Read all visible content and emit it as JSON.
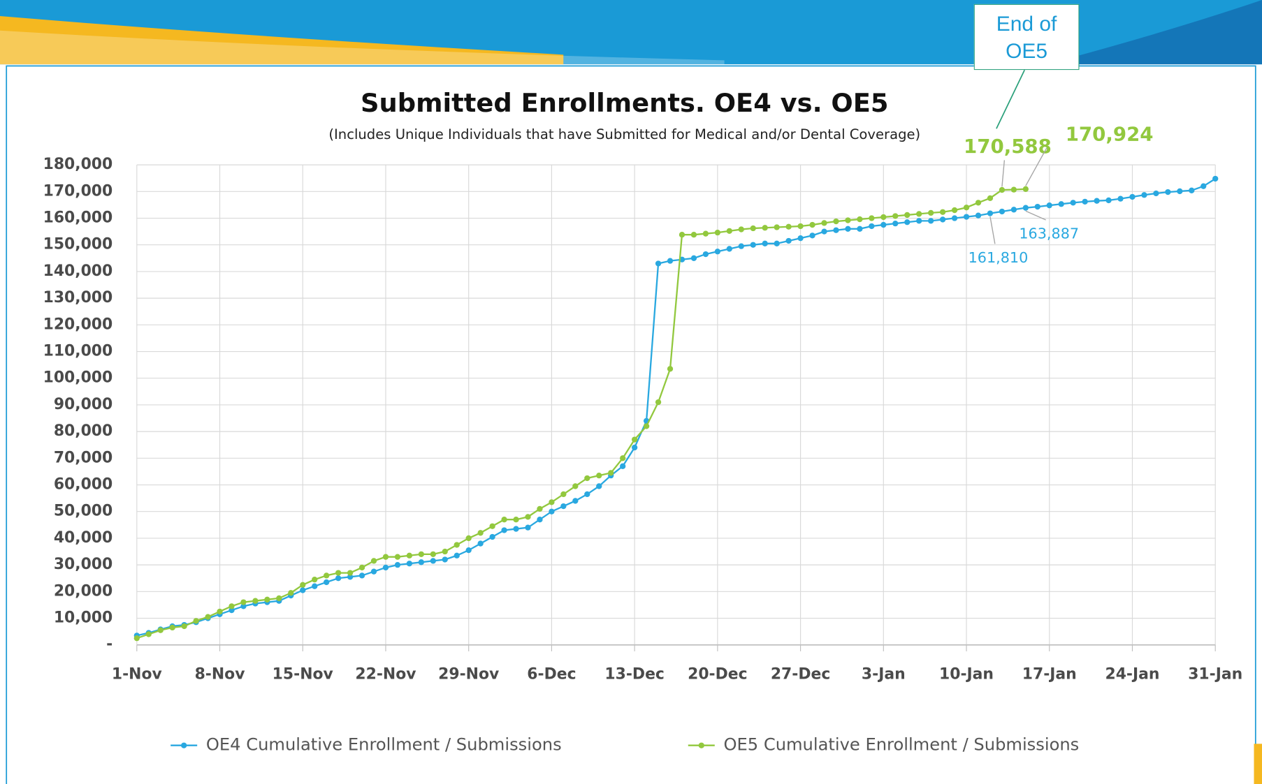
{
  "chart_data": {
    "type": "line",
    "title": "Submitted Enrollments. OE4 vs. OE5",
    "subtitle": "(Includes Unique Individuals that have Submitted for Medical and/or Dental Coverage)",
    "annotation": "End of OE5",
    "categories": [
      "1-Nov",
      null,
      null,
      null,
      null,
      null,
      null,
      "8-Nov",
      null,
      null,
      null,
      null,
      null,
      null,
      "15-Nov",
      null,
      null,
      null,
      null,
      null,
      null,
      "22-Nov",
      null,
      null,
      null,
      null,
      null,
      null,
      "29-Nov",
      null,
      null,
      null,
      null,
      null,
      null,
      "6-Dec",
      null,
      null,
      null,
      null,
      null,
      null,
      "13-Dec",
      null,
      null,
      null,
      null,
      null,
      null,
      "20-Dec",
      null,
      null,
      null,
      null,
      null,
      null,
      "27-Dec",
      null,
      null,
      null,
      null,
      null,
      null,
      "3-Jan",
      null,
      null,
      null,
      null,
      null,
      null,
      "10-Jan",
      null,
      null,
      null,
      null,
      null,
      null,
      "17-Jan",
      null,
      null,
      null,
      null,
      null,
      null,
      "24-Jan",
      null,
      null,
      null,
      null,
      null,
      null,
      "31-Jan"
    ],
    "series": [
      {
        "name": "OE4 Cumulative Enrollment / Submissions",
        "color": "#29a8e0",
        "values": [
          3500,
          4500,
          5800,
          7000,
          7500,
          8500,
          10000,
          11500,
          13000,
          14500,
          15500,
          16000,
          16500,
          18500,
          20500,
          22000,
          23500,
          25000,
          25500,
          26000,
          27500,
          29000,
          30000,
          30500,
          31000,
          31500,
          32000,
          33500,
          35500,
          38000,
          40500,
          43000,
          43500,
          44000,
          47000,
          50000,
          52000,
          54000,
          56500,
          59500,
          63500,
          67000,
          74000,
          84000,
          143000,
          144000,
          144500,
          145000,
          146500,
          147500,
          148500,
          149500,
          150000,
          150500,
          150500,
          151500,
          152500,
          153500,
          155000,
          155500,
          156000,
          156000,
          157000,
          157500,
          158000,
          158500,
          159000,
          159000,
          159500,
          160000,
          160500,
          161000,
          161810,
          162500,
          163200,
          163887,
          164300,
          164800,
          165300,
          165800,
          166200,
          166500,
          166700,
          167300,
          168000,
          168700,
          169300,
          169800,
          170100,
          170400,
          172000,
          174800
        ],
        "value_labels": [
          null,
          null,
          null,
          null,
          null,
          null,
          null,
          null,
          null,
          null,
          null,
          null,
          null,
          null,
          null,
          null,
          null,
          null,
          null,
          null,
          null,
          null,
          null,
          null,
          null,
          null,
          null,
          null,
          null,
          null,
          null,
          null,
          null,
          null,
          null,
          null,
          null,
          null,
          null,
          null,
          null,
          null,
          null,
          null,
          null,
          null,
          null,
          null,
          null,
          null,
          null,
          null,
          null,
          null,
          null,
          null,
          null,
          null,
          null,
          null,
          null,
          null,
          null,
          null,
          null,
          null,
          null,
          null,
          null,
          null,
          null,
          null,
          "161,810",
          null,
          null,
          "163,887",
          null,
          null,
          null,
          null,
          null,
          null,
          null,
          null,
          null,
          null,
          null,
          null,
          null,
          null,
          null,
          null
        ]
      },
      {
        "name": "OE5 Cumulative Enrollment / Submissions",
        "color": "#92c83e",
        "values": [
          2500,
          4000,
          5500,
          6500,
          7000,
          9000,
          10500,
          12500,
          14500,
          16000,
          16500,
          17000,
          17500,
          19500,
          22500,
          24500,
          26000,
          27000,
          27000,
          29000,
          31500,
          33000,
          33000,
          33500,
          34000,
          34000,
          35000,
          37500,
          40000,
          42000,
          44500,
          47000,
          47000,
          48000,
          51000,
          53500,
          56500,
          59500,
          62500,
          63500,
          64500,
          70000,
          77000,
          82000,
          91000,
          103500,
          153800,
          153800,
          154200,
          154600,
          155200,
          155800,
          156200,
          156400,
          156600,
          156800,
          157000,
          157500,
          158200,
          158800,
          159200,
          159600,
          160000,
          160400,
          160800,
          161200,
          161600,
          162000,
          162300,
          163000,
          164000,
          165800,
          167500,
          170588,
          170700,
          170924,
          null,
          null,
          null,
          null,
          null,
          null,
          null,
          null,
          null,
          null,
          null,
          null,
          null,
          null,
          null,
          null
        ],
        "value_labels": [
          null,
          null,
          null,
          null,
          null,
          null,
          null,
          null,
          null,
          null,
          null,
          null,
          null,
          null,
          null,
          null,
          null,
          null,
          null,
          null,
          null,
          null,
          null,
          null,
          null,
          null,
          null,
          null,
          null,
          null,
          null,
          null,
          null,
          null,
          null,
          null,
          null,
          null,
          null,
          null,
          null,
          null,
          null,
          null,
          null,
          null,
          null,
          null,
          null,
          null,
          null,
          null,
          null,
          null,
          null,
          null,
          null,
          null,
          null,
          null,
          null,
          null,
          null,
          null,
          null,
          null,
          null,
          null,
          null,
          null,
          null,
          null,
          null,
          "170,588",
          null,
          "170,924",
          null,
          null,
          null,
          null,
          null,
          null,
          null,
          null,
          null,
          null,
          null,
          null,
          null,
          null,
          null,
          null
        ]
      }
    ],
    "ylim": [
      0,
      180000
    ],
    "yticks": [
      {
        "value": 0,
        "label": "-"
      },
      {
        "value": 10000,
        "label": "10,000"
      },
      {
        "value": 20000,
        "label": "20,000"
      },
      {
        "value": 30000,
        "label": "30,000"
      },
      {
        "value": 40000,
        "label": "40,000"
      },
      {
        "value": 50000,
        "label": "50,000"
      },
      {
        "value": 60000,
        "label": "60,000"
      },
      {
        "value": 70000,
        "label": "70,000"
      },
      {
        "value": 80000,
        "label": "80,000"
      },
      {
        "value": 90000,
        "label": "90,000"
      },
      {
        "value": 100000,
        "label": "100,000"
      },
      {
        "value": 110000,
        "label": "110,000"
      },
      {
        "value": 120000,
        "label": "120,000"
      },
      {
        "value": 130000,
        "label": "130,000"
      },
      {
        "value": 140000,
        "label": "140,000"
      },
      {
        "value": 150000,
        "label": "150,000"
      },
      {
        "value": 160000,
        "label": "160,000"
      },
      {
        "value": 170000,
        "label": "170,000"
      },
      {
        "value": 180000,
        "label": "180,000"
      }
    ],
    "grid": true,
    "legend": "bottom"
  }
}
